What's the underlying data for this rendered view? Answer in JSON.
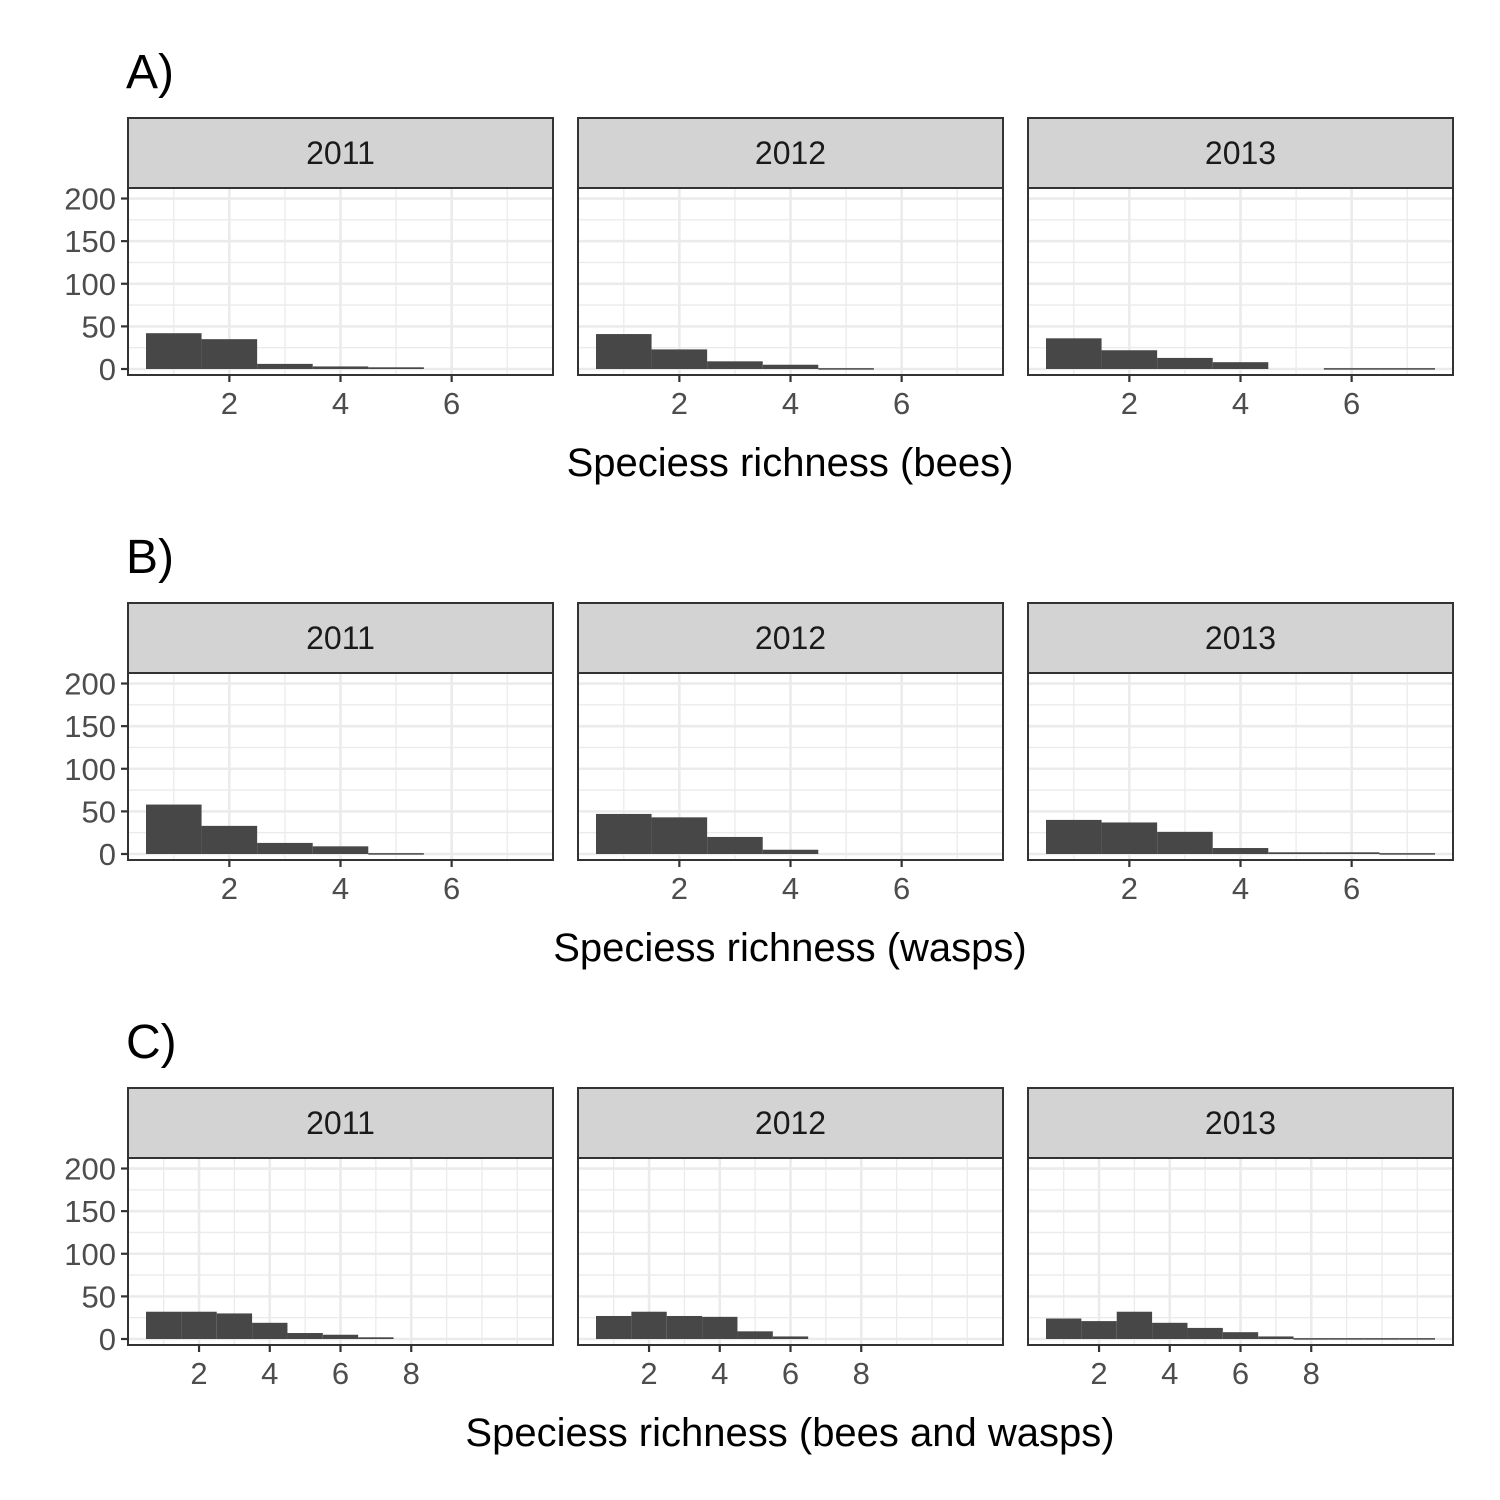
{
  "chart_data": [
    {
      "type": "bar",
      "panel_label": "A)",
      "xlabel": "Speciess richness (bees)",
      "ylabel": "",
      "facets": [
        "2011",
        "2012",
        "2013"
      ],
      "xlim": [
        0.5,
        7.5
      ],
      "ylim": [
        0,
        210
      ],
      "x_ticks": [
        2,
        4,
        6
      ],
      "y_ticks": [
        0,
        50,
        100,
        150,
        200
      ],
      "grid": true,
      "series": [
        {
          "facet": "2011",
          "x": [
            1,
            2,
            3,
            4,
            5,
            6,
            7
          ],
          "values": [
            42,
            35,
            6,
            3,
            2,
            0,
            0
          ]
        },
        {
          "facet": "2012",
          "x": [
            1,
            2,
            3,
            4,
            5,
            6,
            7
          ],
          "values": [
            41,
            23,
            9,
            5,
            1,
            0,
            0
          ]
        },
        {
          "facet": "2013",
          "x": [
            1,
            2,
            3,
            4,
            5,
            6,
            7
          ],
          "values": [
            36,
            22,
            13,
            8,
            0,
            1,
            1
          ]
        }
      ],
      "bar_color": "#474747"
    },
    {
      "type": "bar",
      "panel_label": "B)",
      "xlabel": "Speciess richness (wasps)",
      "ylabel": "",
      "facets": [
        "2011",
        "2012",
        "2013"
      ],
      "xlim": [
        0.5,
        7.5
      ],
      "ylim": [
        0,
        210
      ],
      "x_ticks": [
        2,
        4,
        6
      ],
      "y_ticks": [
        0,
        50,
        100,
        150,
        200
      ],
      "grid": true,
      "series": [
        {
          "facet": "2011",
          "x": [
            1,
            2,
            3,
            4,
            5,
            6,
            7
          ],
          "values": [
            58,
            33,
            13,
            9,
            1,
            0,
            0
          ]
        },
        {
          "facet": "2012",
          "x": [
            1,
            2,
            3,
            4,
            5,
            6,
            7
          ],
          "values": [
            47,
            43,
            20,
            5,
            0,
            0,
            0
          ]
        },
        {
          "facet": "2013",
          "x": [
            1,
            2,
            3,
            4,
            5,
            6,
            7
          ],
          "values": [
            40,
            37,
            26,
            7,
            2,
            2,
            1
          ]
        }
      ],
      "bar_color": "#474747"
    },
    {
      "type": "bar",
      "panel_label": "C)",
      "xlabel": "Speciess richness (bees and wasps)",
      "ylabel": "",
      "facets": [
        "2011",
        "2012",
        "2013"
      ],
      "xlim": [
        0.5,
        11.5
      ],
      "ylim": [
        0,
        210
      ],
      "x_ticks": [
        2,
        4,
        6,
        8
      ],
      "y_ticks": [
        0,
        50,
        100,
        150,
        200
      ],
      "grid": true,
      "series": [
        {
          "facet": "2011",
          "x": [
            1,
            2,
            3,
            4,
            5,
            6,
            7,
            8,
            9,
            10,
            11
          ],
          "values": [
            32,
            32,
            30,
            19,
            7,
            5,
            2,
            0,
            0,
            0,
            0
          ]
        },
        {
          "facet": "2012",
          "x": [
            1,
            2,
            3,
            4,
            5,
            6,
            7,
            8,
            9,
            10,
            11
          ],
          "values": [
            27,
            32,
            27,
            26,
            9,
            3,
            0,
            0,
            0,
            0,
            0
          ]
        },
        {
          "facet": "2013",
          "x": [
            1,
            2,
            3,
            4,
            5,
            6,
            7,
            8,
            9,
            10,
            11
          ],
          "values": [
            24,
            21,
            32,
            19,
            13,
            8,
            3,
            1,
            1,
            1,
            1
          ]
        }
      ],
      "bar_color": "#474747"
    }
  ]
}
